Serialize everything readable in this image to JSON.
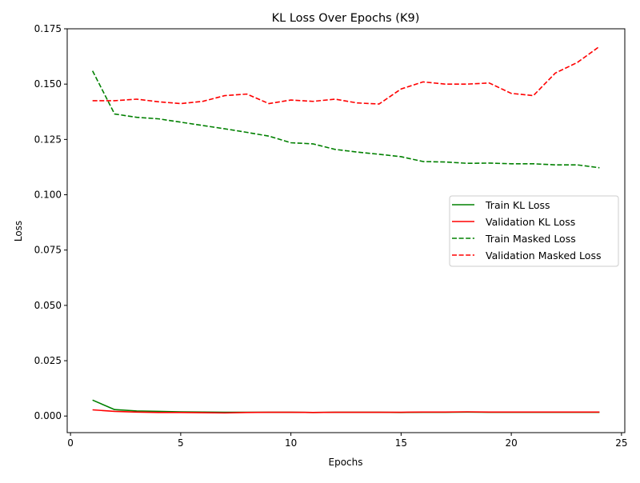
{
  "chart_data": {
    "type": "line",
    "title": "KL Loss Over Epochs (K9)",
    "xlabel": "Epochs",
    "ylabel": "Loss",
    "xlim": [
      -0.15,
      25.15
    ],
    "ylim": [
      -0.0075,
      0.175
    ],
    "xticks": [
      0,
      5,
      10,
      15,
      20,
      25
    ],
    "xtick_labels": [
      "0",
      "5",
      "10",
      "15",
      "20",
      "25"
    ],
    "yticks": [
      0.0,
      0.025,
      0.05,
      0.075,
      0.1,
      0.125,
      0.15,
      0.175
    ],
    "ytick_labels": [
      "0.000",
      "0.025",
      "0.050",
      "0.075",
      "0.100",
      "0.125",
      "0.150",
      "0.175"
    ],
    "grid": false,
    "legend_position": "center-right",
    "x": [
      1,
      2,
      3,
      4,
      5,
      6,
      7,
      8,
      9,
      10,
      11,
      12,
      13,
      14,
      15,
      16,
      17,
      18,
      19,
      20,
      21,
      22,
      23,
      24
    ],
    "series": [
      {
        "name": "Train KL Loss",
        "color": "#008000",
        "dash": "solid",
        "values": [
          0.0072,
          0.0029,
          0.0023,
          0.0021,
          0.0019,
          0.0018,
          0.0017,
          0.0017,
          0.0017,
          0.0017,
          0.0016,
          0.0017,
          0.0017,
          0.0017,
          0.0016,
          0.0017,
          0.0017,
          0.0018,
          0.0017,
          0.0017,
          0.0017,
          0.0017,
          0.0017,
          0.0017
        ]
      },
      {
        "name": "Validation KL Loss",
        "color": "#ff0000",
        "dash": "solid",
        "values": [
          0.0028,
          0.0021,
          0.0018,
          0.0016,
          0.0016,
          0.0015,
          0.0014,
          0.0016,
          0.0017,
          0.0017,
          0.0016,
          0.0017,
          0.0017,
          0.0017,
          0.0017,
          0.0018,
          0.0018,
          0.0019,
          0.0018,
          0.0018,
          0.0018,
          0.0018,
          0.0018,
          0.0018
        ]
      },
      {
        "name": "Train Masked Loss",
        "color": "#008000",
        "dash": "dashed",
        "values": [
          0.156,
          0.1365,
          0.135,
          0.1343,
          0.1328,
          0.1313,
          0.1298,
          0.1282,
          0.1265,
          0.1235,
          0.123,
          0.1205,
          0.1193,
          0.1183,
          0.1172,
          0.115,
          0.1148,
          0.1142,
          0.1143,
          0.114,
          0.114,
          0.1135,
          0.1135,
          0.1122
        ]
      },
      {
        "name": "Validation Masked Loss",
        "color": "#ff0000",
        "dash": "dashed",
        "values": [
          0.1425,
          0.1425,
          0.1432,
          0.142,
          0.1412,
          0.1422,
          0.1448,
          0.1455,
          0.1412,
          0.1428,
          0.1422,
          0.1432,
          0.1415,
          0.141,
          0.1478,
          0.151,
          0.15,
          0.15,
          0.1505,
          0.1458,
          0.1448,
          0.155,
          0.1598,
          0.167
        ]
      }
    ]
  }
}
